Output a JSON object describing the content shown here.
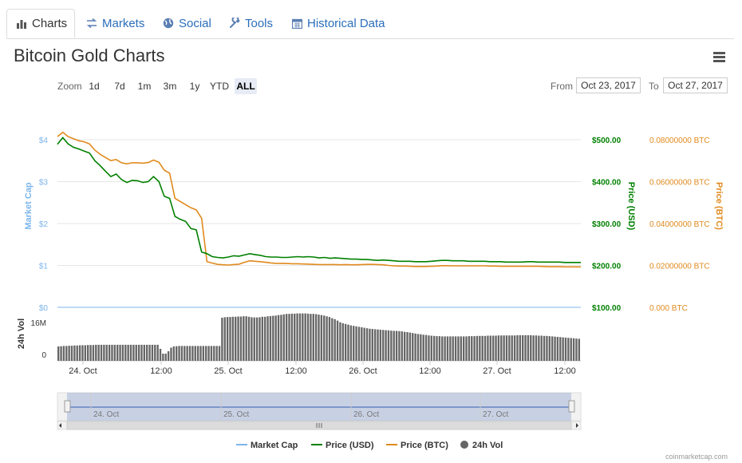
{
  "tabs": [
    {
      "label": "Charts",
      "icon": "bar-chart-icon"
    },
    {
      "label": "Markets",
      "icon": "exchange-icon"
    },
    {
      "label": "Social",
      "icon": "globe-icon"
    },
    {
      "label": "Tools",
      "icon": "wrench-icon"
    },
    {
      "label": "Historical Data",
      "icon": "calendar-icon"
    }
  ],
  "page_title": "Bitcoin Gold Charts",
  "range_selector": {
    "zoom_label": "Zoom",
    "buttons": [
      "1d",
      "7d",
      "1m",
      "3m",
      "1y",
      "YTD",
      "ALL"
    ],
    "selected": "ALL",
    "from_label": "From",
    "from_value": "Oct 23, 2017",
    "to_label": "To",
    "to_value": "Oct 27, 2017"
  },
  "credit": "coinmarketcap.com",
  "colors": {
    "market_cap": "#7cb5ec",
    "price_usd": "#008000",
    "price_btc": "#e08a1e",
    "volume": "#555555"
  },
  "chart_data": {
    "type": "line",
    "x_ticks": [
      "24. Oct",
      "12:00",
      "25. Oct",
      "12:00",
      "26. Oct",
      "12:00",
      "27. Oct",
      "12:00"
    ],
    "left_axis": {
      "title": "Market Cap",
      "ticks": [
        "$0",
        "$1",
        "$2",
        "$3",
        "$4"
      ]
    },
    "right_axis_usd": {
      "title": "Price (USD)",
      "ticks": [
        "$100.00",
        "$200.00",
        "$300.00",
        "$400.00",
        "$500.00"
      ],
      "ylim": [
        100,
        500
      ]
    },
    "right_axis_btc": {
      "title": "Price (BTC)",
      "ticks": [
        "0.000 BTC",
        "0.02000000 BTC",
        "0.04000000 BTC",
        "0.06000000 BTC",
        "0.08000000 BTC"
      ],
      "ylim": [
        0,
        0.08
      ]
    },
    "volume_axis": {
      "title": "24h Vol",
      "ticks": [
        "0",
        "16M"
      ]
    },
    "x_range": [
      0,
      98
    ],
    "series": [
      {
        "name": "Market Cap",
        "axis": "market_cap",
        "points": [
          [
            0,
            0
          ],
          [
            98,
            0
          ]
        ]
      },
      {
        "name": "Price (USD)",
        "axis": "usd",
        "points": [
          [
            0,
            489
          ],
          [
            1,
            505
          ],
          [
            2,
            490
          ],
          [
            3,
            482
          ],
          [
            4,
            478
          ],
          [
            5,
            473
          ],
          [
            6,
            468
          ],
          [
            7,
            450
          ],
          [
            8,
            438
          ],
          [
            9,
            425
          ],
          [
            10,
            412
          ],
          [
            11,
            418
          ],
          [
            12,
            405
          ],
          [
            13,
            398
          ],
          [
            14,
            403
          ],
          [
            15,
            402
          ],
          [
            16,
            398
          ],
          [
            17,
            400
          ],
          [
            18,
            412
          ],
          [
            19,
            400
          ],
          [
            20,
            365
          ],
          [
            21,
            360
          ],
          [
            22,
            317
          ],
          [
            23,
            310
          ],
          [
            24,
            305
          ],
          [
            25,
            288
          ],
          [
            26,
            285
          ],
          [
            27,
            232
          ],
          [
            28,
            228
          ],
          [
            29,
            221
          ],
          [
            30,
            219
          ],
          [
            31,
            218
          ],
          [
            32,
            220
          ],
          [
            33,
            223
          ],
          [
            34,
            222
          ],
          [
            35,
            225
          ],
          [
            36,
            228
          ],
          [
            37,
            226
          ],
          [
            38,
            224
          ],
          [
            39,
            221
          ],
          [
            40,
            220
          ],
          [
            41,
            220
          ],
          [
            42,
            219
          ],
          [
            43,
            219
          ],
          [
            44,
            220
          ],
          [
            45,
            221
          ],
          [
            46,
            220
          ],
          [
            47,
            221
          ],
          [
            48,
            220
          ],
          [
            49,
            218
          ],
          [
            50,
            219
          ],
          [
            51,
            217
          ],
          [
            52,
            218
          ],
          [
            53,
            217
          ],
          [
            54,
            216
          ],
          [
            55,
            215
          ],
          [
            56,
            215
          ],
          [
            57,
            214
          ],
          [
            58,
            214
          ],
          [
            59,
            213
          ],
          [
            60,
            212
          ],
          [
            61,
            213
          ],
          [
            62,
            212
          ],
          [
            63,
            211
          ],
          [
            64,
            210
          ],
          [
            65,
            210
          ],
          [
            66,
            210
          ],
          [
            67,
            209
          ],
          [
            68,
            209
          ],
          [
            69,
            209
          ],
          [
            70,
            210
          ],
          [
            71,
            211
          ],
          [
            72,
            212
          ],
          [
            73,
            212
          ],
          [
            74,
            211
          ],
          [
            75,
            211
          ],
          [
            76,
            211
          ],
          [
            77,
            210
          ],
          [
            78,
            210
          ],
          [
            79,
            210
          ],
          [
            80,
            210
          ],
          [
            81,
            209
          ],
          [
            82,
            209
          ],
          [
            83,
            209
          ],
          [
            84,
            208
          ],
          [
            85,
            208
          ],
          [
            86,
            208
          ],
          [
            87,
            208
          ],
          [
            88,
            209
          ],
          [
            89,
            209
          ],
          [
            90,
            208
          ],
          [
            91,
            208
          ],
          [
            92,
            208
          ],
          [
            93,
            208
          ],
          [
            94,
            208
          ],
          [
            95,
            207
          ],
          [
            96,
            207
          ],
          [
            97,
            207
          ],
          [
            98,
            207
          ]
        ]
      },
      {
        "name": "Price (BTC)",
        "axis": "btc",
        "points": [
          [
            0,
            0.0815
          ],
          [
            1,
            0.0835
          ],
          [
            2,
            0.0815
          ],
          [
            3,
            0.0805
          ],
          [
            4,
            0.0795
          ],
          [
            5,
            0.079
          ],
          [
            6,
            0.078
          ],
          [
            7,
            0.075
          ],
          [
            8,
            0.073
          ],
          [
            9,
            0.0715
          ],
          [
            10,
            0.07
          ],
          [
            11,
            0.0705
          ],
          [
            12,
            0.069
          ],
          [
            13,
            0.0685
          ],
          [
            14,
            0.069
          ],
          [
            15,
            0.069
          ],
          [
            16,
            0.0688
          ],
          [
            17,
            0.0691
          ],
          [
            18,
            0.0703
          ],
          [
            19,
            0.0692
          ],
          [
            20,
            0.0655
          ],
          [
            21,
            0.064
          ],
          [
            22,
            0.052
          ],
          [
            23,
            0.0505
          ],
          [
            24,
            0.049
          ],
          [
            25,
            0.0475
          ],
          [
            26,
            0.0465
          ],
          [
            27,
            0.0425
          ],
          [
            28,
            0.0218
          ],
          [
            29,
            0.0211
          ],
          [
            30,
            0.0205
          ],
          [
            31,
            0.0203
          ],
          [
            32,
            0.0202
          ],
          [
            33,
            0.0204
          ],
          [
            34,
            0.0206
          ],
          [
            35,
            0.0215
          ],
          [
            36,
            0.0222
          ],
          [
            37,
            0.022
          ],
          [
            38,
            0.0218
          ],
          [
            39,
            0.0215
          ],
          [
            40,
            0.0212
          ],
          [
            41,
            0.021
          ],
          [
            42,
            0.021
          ],
          [
            43,
            0.0209
          ],
          [
            44,
            0.0208
          ],
          [
            45,
            0.0208
          ],
          [
            46,
            0.0207
          ],
          [
            47,
            0.0206
          ],
          [
            48,
            0.0205
          ],
          [
            49,
            0.0204
          ],
          [
            50,
            0.0204
          ],
          [
            51,
            0.0204
          ],
          [
            52,
            0.0204
          ],
          [
            53,
            0.0203
          ],
          [
            54,
            0.0204
          ],
          [
            55,
            0.0203
          ],
          [
            56,
            0.0203
          ],
          [
            57,
            0.0204
          ],
          [
            58,
            0.0205
          ],
          [
            59,
            0.0205
          ],
          [
            60,
            0.0204
          ],
          [
            61,
            0.0203
          ],
          [
            62,
            0.02
          ],
          [
            63,
            0.0198
          ],
          [
            64,
            0.0197
          ],
          [
            65,
            0.0197
          ],
          [
            66,
            0.0196
          ],
          [
            67,
            0.0195
          ],
          [
            68,
            0.0195
          ],
          [
            69,
            0.0195
          ],
          [
            70,
            0.0196
          ],
          [
            71,
            0.0197
          ],
          [
            72,
            0.0199
          ],
          [
            73,
            0.0199
          ],
          [
            74,
            0.0198
          ],
          [
            75,
            0.0198
          ],
          [
            76,
            0.0198
          ],
          [
            77,
            0.0198
          ],
          [
            78,
            0.0198
          ],
          [
            79,
            0.0198
          ],
          [
            80,
            0.0198
          ],
          [
            81,
            0.0197
          ],
          [
            82,
            0.0197
          ],
          [
            83,
            0.0196
          ],
          [
            84,
            0.0196
          ],
          [
            85,
            0.0196
          ],
          [
            86,
            0.0196
          ],
          [
            87,
            0.0196
          ],
          [
            88,
            0.0196
          ],
          [
            89,
            0.0196
          ],
          [
            90,
            0.0196
          ],
          [
            91,
            0.0195
          ],
          [
            92,
            0.0194
          ],
          [
            93,
            0.0194
          ],
          [
            94,
            0.0194
          ],
          [
            95,
            0.0193
          ],
          [
            96,
            0.0193
          ],
          [
            97,
            0.0193
          ],
          [
            98,
            0.0193
          ]
        ]
      },
      {
        "name": "24h Vol",
        "axis": "volume",
        "type": "column",
        "values": [
          6,
          6.1,
          6.2,
          6.2,
          6.3,
          6.3,
          6.4,
          6.4,
          6.5,
          6.5,
          6.5,
          6.6,
          6.6,
          6.6,
          6.7,
          6.7,
          6.7,
          6.7,
          6.7,
          6.7,
          6.7,
          6.7,
          6.7,
          6.7,
          6.7,
          6.7,
          6.7,
          6.7,
          6.7,
          6.7,
          6.7,
          6.7,
          6.7,
          6.7,
          6.7,
          6.7,
          6.7,
          6.7,
          5,
          3,
          3,
          4,
          5.5,
          6,
          6.1,
          6.2,
          6.2,
          6.2,
          6.2,
          6.2,
          6.2,
          6.2,
          6.2,
          6.2,
          6.2,
          6.2,
          6.2,
          6.2,
          6.2,
          6.2,
          6.2,
          18,
          18.2,
          18.3,
          18.3,
          18.4,
          18.4,
          18.5,
          18.5,
          18.6,
          18.6,
          18.4,
          18.2,
          18.1,
          18.1,
          18.2,
          18.4,
          18.4,
          18.6,
          18.7,
          18.8,
          18.9,
          19.1,
          19.2,
          19.4,
          19.6,
          19.6,
          19.7,
          19.7,
          19.8,
          19.8,
          19.8,
          19.8,
          19.7,
          19.6,
          19.6,
          19.5,
          19.3,
          19.1,
          18.9,
          18.6,
          18.3,
          17.8,
          17.4,
          16.8,
          16.1,
          15.7,
          15.4,
          15.1,
          14.8,
          14.6,
          14.4,
          14.2,
          14,
          13.8,
          13.6,
          13.4,
          13.3,
          13.2,
          13.1,
          13,
          12.9,
          12.8,
          12.7,
          12.6,
          12.5,
          12.5,
          12.4,
          12.3,
          12.1,
          12,
          11.8,
          11.6,
          11.4,
          11.2,
          11.1,
          10.9,
          10.8,
          10.6,
          10.5,
          10.4,
          10.3,
          10.3,
          10.2,
          10.2,
          10.2,
          10.2,
          10.2,
          10.2,
          10.2,
          10.2,
          10.2,
          10.2,
          10.3,
          10.3,
          10.3,
          10.4,
          10.4,
          10.4,
          10.4,
          10.5,
          10.5,
          10.5,
          10.5,
          10.6,
          10.6,
          10.6,
          10.6,
          10.6,
          10.6,
          10.6,
          10.7,
          10.7,
          10.7,
          10.7,
          10.7,
          10.7,
          10.6,
          10.6,
          10.5,
          10.5,
          10.4,
          10.4,
          10.3,
          10.2,
          10.1,
          10,
          9.9,
          9.8,
          9.7,
          9.6,
          9.5,
          9.4,
          9.3,
          9.2
        ]
      }
    ],
    "navigator": {
      "x_ticks": [
        "24. Oct",
        "25. Oct",
        "26. Oct",
        "27. Oct"
      ]
    },
    "legend": {
      "placement": "bottom",
      "items": [
        {
          "label": "Market Cap",
          "marker": "line"
        },
        {
          "label": "Price (USD)",
          "marker": "line"
        },
        {
          "label": "Price (BTC)",
          "marker": "line"
        },
        {
          "label": "24h Vol",
          "marker": "circle"
        }
      ]
    }
  }
}
